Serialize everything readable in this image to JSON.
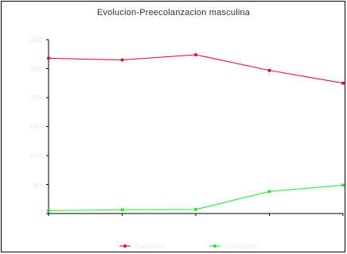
{
  "chart_data": {
    "type": "line",
    "title": "Evolucion-Preecolanzacion masculina",
    "xlabel": "",
    "ylabel": "",
    "categories": [
      "",
      "",
      "",
      "",
      ""
    ],
    "ylim": [
      0,
      3000
    ],
    "yticks": [
      "3000",
      "2500",
      "2000",
      "1500",
      "1000",
      "500",
      "0"
    ],
    "grid": false,
    "legend_position": "bottom",
    "series": [
      {
        "name": "Espanoles",
        "color": "#e8001c",
        "values": [
          2680,
          2650,
          2740,
          2470,
          2250
        ]
      },
      {
        "name": "Extranjeros",
        "color": "#1ee81e",
        "values": [
          50,
          65,
          70,
          380,
          490
        ]
      }
    ]
  }
}
